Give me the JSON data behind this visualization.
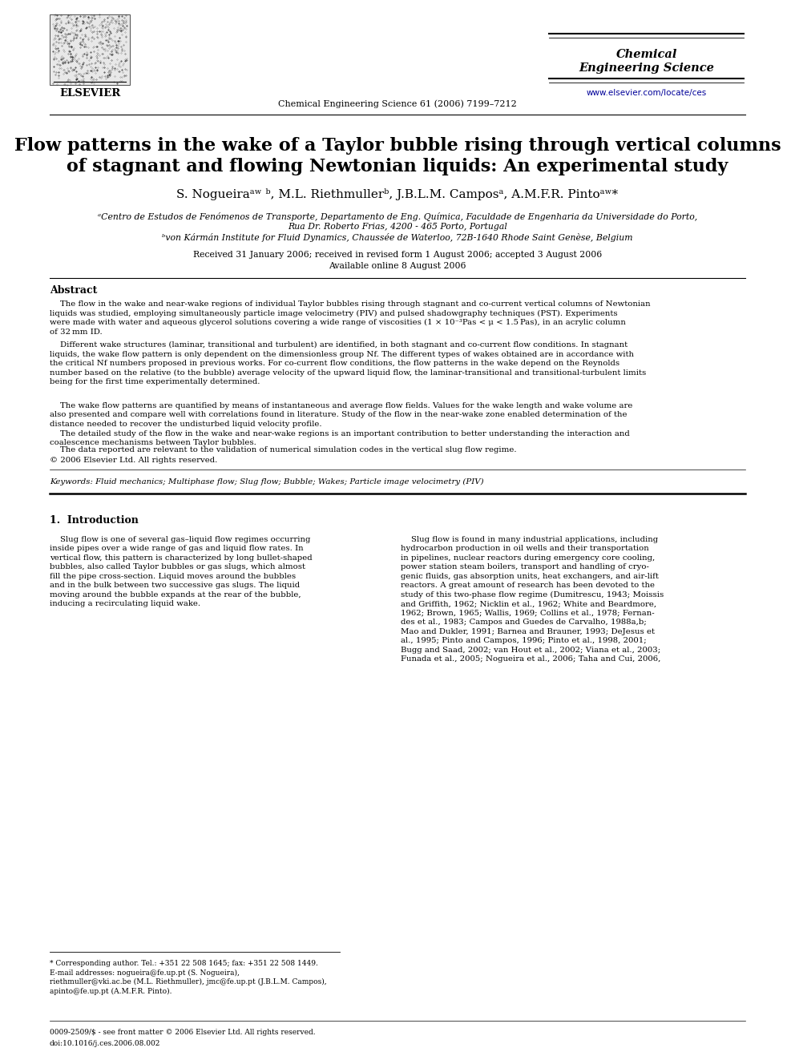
{
  "page_bg": "#ffffff",
  "title_line1": "Flow patterns in the wake of a Taylor bubble rising through vertical columns",
  "title_line2": "of stagnant and flowing Newtonian liquids: An experimental study",
  "authors": "S. Nogueiraᵃʷ ᵇ, M.L. Riethmullerᵇ, J.B.L.M. Camposᵃ, A.M.F.R. Pintoᵃʷ*",
  "affil_a": "ᵃCentro de Estudos de Fenómenos de Transporte, Departamento de Eng. Química, Faculdade de Engenharia da Universidade do Porto,",
  "affil_a2": "Rua Dr. Roberto Frias, 4200 - 465 Porto, Portugal",
  "affil_b": "ᵇvon Kármán Institute for Fluid Dynamics, Chaussée de Waterloo, 72B-1640 Rhode Saint Genèse, Belgium",
  "received": "Received 31 January 2006; received in revised form 1 August 2006; accepted 3 August 2006",
  "available": "Available online 8 August 2006",
  "journal_header": "Chemical Engineering Science 61 (2006) 7199–7212",
  "journal_name_line1": "Chemical",
  "journal_name_line2": "Engineering Science",
  "www_text": "www.elsevier.com/locate/ces",
  "abstract_title": "Abstract",
  "abstract_p1_indent": "    The flow in the wake and near-wake regions of individual Taylor bubbles rising through stagnant and co-current vertical columns of Newtonian\nliquids was studied, employing simultaneously particle image velocimetry (PIV) and pulsed shadowgraphy techniques (PST). Experiments\nwere made with water and aqueous glycerol solutions covering a wide range of viscosities (1 × 10⁻³Pas < μ < 1.5 Pas), in an acrylic column\nof 32 mm ID.",
  "abstract_p2": "    Different wake structures (laminar, transitional and turbulent) are identified, in both stagnant and co-current flow conditions. In stagnant\nliquids, the wake flow pattern is only dependent on the dimensionless group Nf. The different types of wakes obtained are in accordance with\nthe critical Nf numbers proposed in previous works. For co-current flow conditions, the flow patterns in the wake depend on the Reynolds\nnumber based on the relative (to the bubble) average velocity of the upward liquid flow, the laminar-transitional and transitional-turbulent limits\nbeing for the first time experimentally determined.",
  "abstract_p3": "    The wake flow patterns are quantified by means of instantaneous and average flow fields. Values for the wake length and wake volume are\nalso presented and compare well with correlations found in literature. Study of the flow in the near-wake zone enabled determination of the\ndistance needed to recover the undisturbed liquid velocity profile.",
  "abstract_p4": "    The detailed study of the flow in the wake and near-wake regions is an important contribution to better understanding the interaction and\ncoalescence mechanisms between Taylor bubbles.",
  "abstract_p5": "    The data reported are relevant to the validation of numerical simulation codes in the vertical slug flow regime.",
  "copyright": "© 2006 Elsevier Ltd. All rights reserved.",
  "keywords": "Keywords: Fluid mechanics; Multiphase flow; Slug flow; Bubble; Wakes; Particle image velocimetry (PIV)",
  "section1_title": "1.  Introduction",
  "section1_col1_p1": "    Slug flow is one of several gas–liquid flow regimes occurring\ninside pipes over a wide range of gas and liquid flow rates. In\nvertical flow, this pattern is characterized by long bullet-shaped\nbubbles, also called Taylor bubbles or gas slugs, which almost\nfill the pipe cross-section. Liquid moves around the bubbles\nand in the bulk between two successive gas slugs. The liquid\nmoving around the bubble expands at the rear of the bubble,\ninducing a recirculating liquid wake.",
  "section1_col2_p1": "    Slug flow is found in many industrial applications, including\nhydrocarbon production in oil wells and their transportation\nin pipelines, nuclear reactors during emergency core cooling,\npower station steam boilers, transport and handling of cryo-\ngenic fluids, gas absorption units, heat exchangers, and air-lift\nreactors. A great amount of research has been devoted to the\nstudy of this two-phase flow regime (Dumitrescu, 1943; Moissis\nand Griffith, 1962; Nicklin et al., 1962; White and Beardmore,\n1962; Brown, 1965; Wallis, 1969; Collins et al., 1978; Fernan-\ndes et al., 1983; Campos and Guedes de Carvalho, 1988a,b;\nMao and Dukler, 1991; Barnea and Brauner, 1993; DeJesus et\nal., 1995; Pinto and Campos, 1996; Pinto et al., 1998, 2001;\nBugg and Saad, 2002; van Hout et al., 2002; Viana et al., 2003;\nFunada et al., 2005; Nogueira et al., 2006; Taha and Cui, 2006,",
  "footnote_star": "* Corresponding author. Tel.: +351 22 508 1645; fax: +351 22 508 1449.",
  "footnote_email": "E-mail addresses: nogueira@fe.up.pt (S. Nogueira),\nriethmuller@vki.ac.be (M.L. Riethmuller), jmc@fe.up.pt (J.B.L.M. Campos),\napinto@fe.up.pt (A.M.F.R. Pinto).",
  "issn": "0009-2509/$ - see front matter © 2006 Elsevier Ltd. All rights reserved.",
  "doi": "doi:10.1016/j.ces.2006.08.002",
  "lm": 62,
  "rm": 930,
  "col_split": 492
}
